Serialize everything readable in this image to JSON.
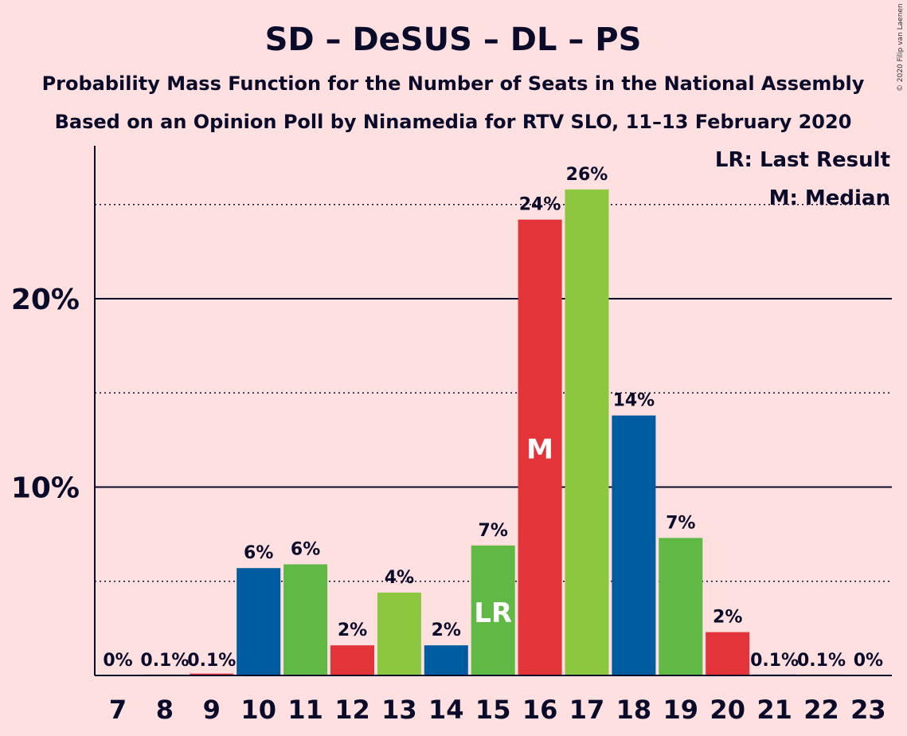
{
  "chart_data": {
    "type": "bar",
    "title": "SD – DeSUS – DL – PS",
    "subtitle_1": "Probability Mass Function for the Number of Seats in the National Assembly",
    "subtitle_2": "Based on an Opinion Poll by Ninamedia for RTV SLO, 11–13 February 2020",
    "copyright": "© 2020 Filip van Laenen",
    "categories": [
      "7",
      "8",
      "9",
      "10",
      "11",
      "12",
      "13",
      "14",
      "15",
      "16",
      "17",
      "18",
      "19",
      "20",
      "21",
      "22",
      "23"
    ],
    "values": [
      0,
      0.05,
      0.1,
      5.7,
      5.9,
      1.6,
      4.4,
      1.6,
      6.9,
      24.2,
      25.8,
      13.8,
      7.3,
      2.3,
      0.05,
      0.05,
      0
    ],
    "value_labels": [
      "0%",
      "0.1%",
      "0.1%",
      "6%",
      "6%",
      "2%",
      "4%",
      "2%",
      "7%",
      "24%",
      "26%",
      "14%",
      "7%",
      "2%",
      "0.1%",
      "0.1%",
      "0%"
    ],
    "bar_colors": [
      "#005ca0",
      "#61b945",
      "#e3343a",
      "#005ca0",
      "#61b945",
      "#e3343a",
      "#8dc63f",
      "#005ca0",
      "#61b945",
      "#e3343a",
      "#8dc63f",
      "#005ca0",
      "#61b945",
      "#e3343a",
      "#005ca0",
      "#61b945",
      "#e3343a"
    ],
    "ylim": [
      0,
      28
    ],
    "y_ticks": [
      {
        "value": 10,
        "label": "10%"
      },
      {
        "value": 20,
        "label": "20%"
      }
    ],
    "y_minor_gridlines": [
      5,
      15,
      25
    ],
    "grid": true,
    "markers": [
      {
        "category": "15",
        "text": "LR"
      },
      {
        "category": "16",
        "text": "M"
      }
    ],
    "legend": {
      "placement": "top-right",
      "entries": [
        "LR: Last Result",
        "M: Median"
      ]
    }
  }
}
